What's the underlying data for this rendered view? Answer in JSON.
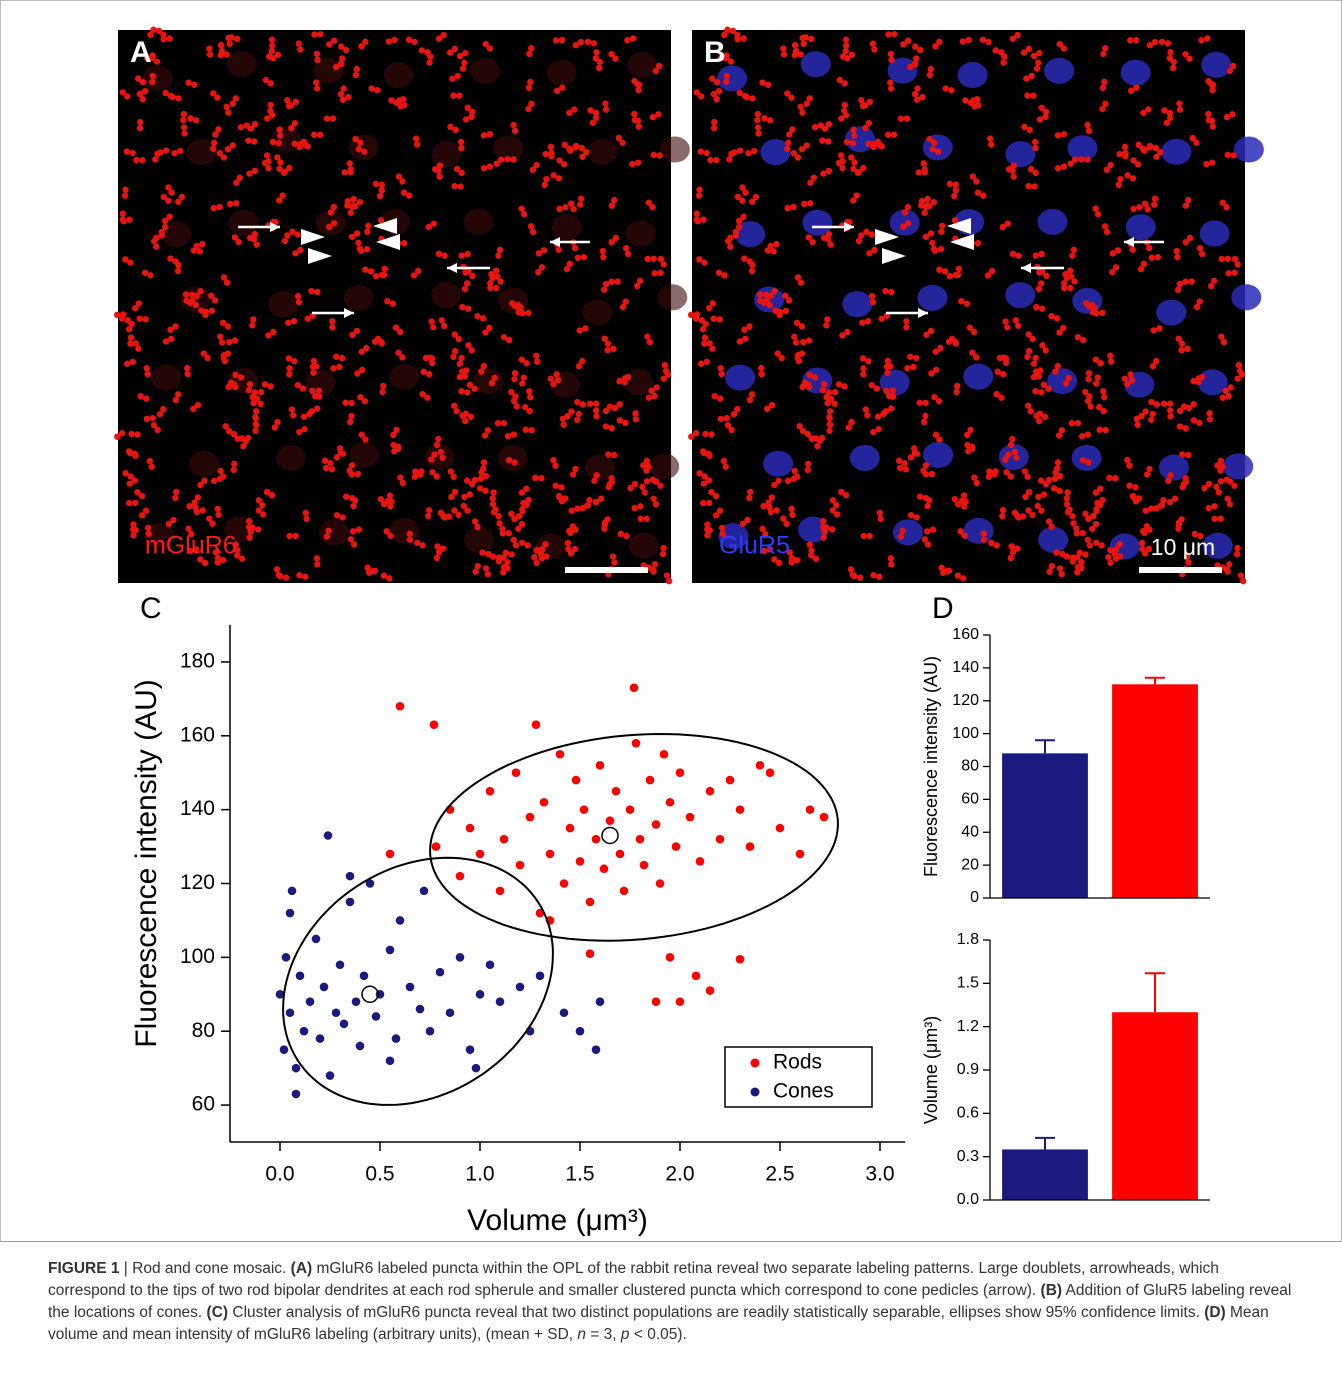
{
  "panels": [
    {
      "letter": "A",
      "stain": "mGluR6"
    },
    {
      "letter": "B",
      "stain": "GluR5",
      "scale": "10 μm"
    }
  ],
  "chart_data": [
    {
      "type": "scatter",
      "panel": "C",
      "x_label": "Volume (μm³)",
      "y_label": "Fluorescence intensity (AU)",
      "xlim": [
        -0.25,
        3.125
      ],
      "ylim": [
        50,
        190
      ],
      "xticks": [
        {
          "value": 0,
          "label": "0.0"
        },
        0.5,
        {
          "value": 1,
          "label": "1.0"
        },
        1.5,
        {
          "value": 2,
          "label": "2.0"
        },
        2.5,
        {
          "value": 3,
          "label": "3.0"
        }
      ],
      "yticks": [
        60,
        80,
        100,
        120,
        140,
        160,
        180
      ],
      "legend": "lower right",
      "series": [
        {
          "name": "Rods",
          "color": "#ff0000",
          "x": [
            0.78,
            0.85,
            0.9,
            0.95,
            1.0,
            1.05,
            1.1,
            1.12,
            1.18,
            1.2,
            1.25,
            1.3,
            1.32,
            1.35,
            1.4,
            1.42,
            1.45,
            1.48,
            1.5,
            1.52,
            1.55,
            1.58,
            1.6,
            1.62,
            1.65,
            1.68,
            1.7,
            1.72,
            1.75,
            1.78,
            1.8,
            1.82,
            1.85,
            1.88,
            1.9,
            1.92,
            1.95,
            1.98,
            2.0,
            2.05,
            2.1,
            2.15,
            2.2,
            2.25,
            2.3,
            2.35,
            2.4,
            2.5,
            2.6,
            2.72,
            0.6,
            0.77,
            1.77,
            1.28,
            1.95,
            2.08,
            2.15,
            2.3,
            1.88,
            2.0,
            1.55,
            0.55,
            1.35,
            2.45,
            2.65
          ],
          "y": [
            130,
            140,
            122,
            135,
            128,
            145,
            118,
            132,
            150,
            125,
            138,
            112,
            142,
            128,
            155,
            120,
            135,
            148,
            126,
            140,
            115,
            132,
            152,
            124,
            137,
            145,
            128,
            118,
            140,
            158,
            132,
            125,
            148,
            136,
            120,
            155,
            142,
            130,
            150,
            138,
            126,
            145,
            132,
            148,
            140,
            130,
            152,
            135,
            128,
            138,
            168,
            163,
            173,
            163,
            100,
            95,
            91,
            99.5,
            88,
            88,
            101,
            128,
            110,
            150,
            140
          ],
          "centroid": [
            1.65,
            133
          ],
          "ellipse": {
            "center": [
              1.77,
              132.5
            ],
            "axis1": [
              1.0,
              9
            ],
            "axis2": [
              -0.2,
              26.5
            ]
          }
        },
        {
          "name": "Cones",
          "color": "#1b1a7e",
          "x": [
            0.0,
            0.02,
            0.03,
            0.05,
            0.05,
            0.08,
            0.1,
            0.12,
            0.15,
            0.18,
            0.2,
            0.22,
            0.25,
            0.28,
            0.3,
            0.32,
            0.35,
            0.38,
            0.4,
            0.42,
            0.45,
            0.48,
            0.5,
            0.55,
            0.58,
            0.6,
            0.65,
            0.7,
            0.72,
            0.75,
            0.8,
            0.85,
            0.9,
            0.95,
            1.0,
            1.05,
            1.1,
            1.2,
            1.25,
            1.3,
            0.24,
            0.06,
            0.08,
            1.42,
            1.5,
            1.58,
            1.6,
            0.98,
            0.35,
            0.55
          ],
          "y": [
            90,
            75,
            100,
            85,
            112,
            70,
            95,
            80,
            88,
            105,
            78,
            92,
            68,
            85,
            98,
            82,
            115,
            88,
            76,
            95,
            120,
            84,
            90,
            102,
            78,
            110,
            92,
            86,
            118,
            80,
            96,
            85,
            100,
            75,
            90,
            98,
            88,
            92,
            80,
            95,
            133,
            118,
            63,
            85,
            80,
            75,
            88,
            70,
            122,
            72
          ],
          "centroid": [
            0.45,
            90
          ],
          "ellipse": {
            "center": [
              0.69,
              93.5
            ],
            "axis1": [
              0.66,
              14
            ],
            "axis2": [
              -0.14,
              30.4
            ]
          }
        }
      ]
    },
    {
      "type": "bar",
      "panel": "D",
      "y_label": "Fluorescence intensity (AU)",
      "categories": [
        null,
        null
      ],
      "values": [
        88,
        130
      ],
      "errors": [
        8,
        4
      ],
      "colors": [
        "#1b1a7e",
        "#ff0000"
      ],
      "ylim": [
        0,
        160
      ],
      "yticks": [
        0,
        20,
        40,
        60,
        80,
        100,
        120,
        140,
        160
      ]
    },
    {
      "type": "bar",
      "y_label": "Volume (μm³)",
      "categories": [
        null,
        null
      ],
      "values": [
        0.35,
        1.3
      ],
      "errors": [
        0.08,
        0.27
      ],
      "colors": [
        "#1b1a7e",
        "#ff0000"
      ],
      "ylim": [
        0,
        1.8
      ],
      "yticks": [
        {
          "value": 0,
          "label": "0.0"
        },
        0.3,
        0.6,
        0.9,
        1.2,
        1.5,
        1.8
      ]
    }
  ],
  "caption": {
    "label": "FIGURE 1",
    "segments": [
      {
        "text": " | Rod and cone mosaic. "
      },
      {
        "text": "(A)",
        "b": true
      },
      {
        "text": " mGluR6 labeled puncta within the OPL of the rabbit retina reveal two separate labeling patterns. Large doublets, arrowheads, which correspond to the tips of two rod bipolar dendrites at each rod spherule and smaller clustered puncta which correspond to cone pedicles (arrow). "
      },
      {
        "text": "(B)",
        "b": true
      },
      {
        "text": " Addition of GluR5 labeling reveal the locations of cones. "
      },
      {
        "text": "(C)",
        "b": true
      },
      {
        "text": " Cluster analysis of mGluR6 puncta reveal that two distinct populations are readily statistically separable, ellipses show 95% confidence limits. "
      },
      {
        "text": "(D)",
        "b": true
      },
      {
        "text": " Mean volume and mean intensity of mGluR6 labeling (arbitrary units), (mean + SD, "
      },
      {
        "text": "n",
        "i": true
      },
      {
        "text": " = 3, "
      },
      {
        "text": "p",
        "i": true
      },
      {
        "text": " < 0.05)."
      }
    ]
  }
}
